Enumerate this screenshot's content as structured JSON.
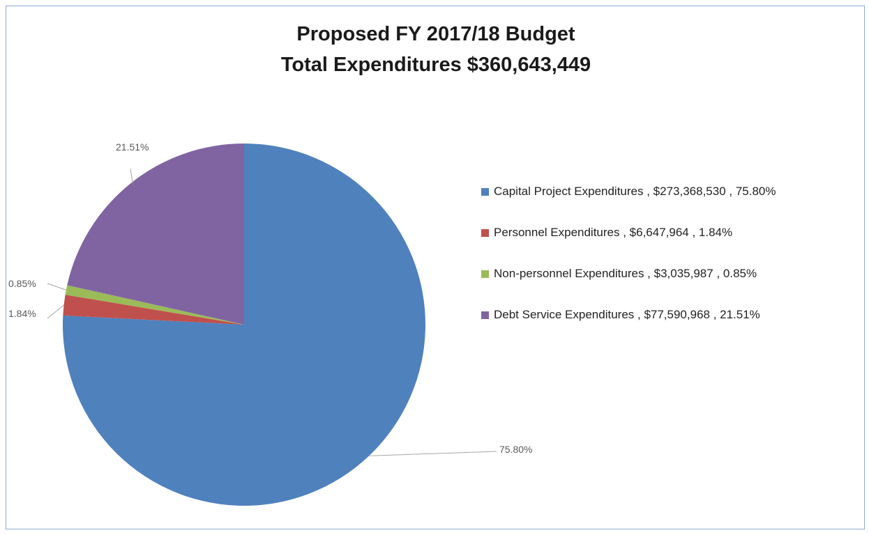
{
  "chart_data": {
    "type": "pie",
    "title": "Proposed FY 2017/18 Budget",
    "subtitle": "Total Expenditures $360,643,449",
    "slices": [
      {
        "name": "Capital Project Expenditures",
        "amount": "$273,368,530",
        "value": 75.8,
        "label": "75.80%",
        "color": "#4f81bd"
      },
      {
        "name": "Personnel Expenditures",
        "amount": "$6,647,964",
        "value": 1.84,
        "label": "1.84%",
        "color": "#c0504d"
      },
      {
        "name": "Non-personnel Expenditures",
        "amount": "$3,035,987",
        "value": 0.85,
        "label": "0.85%",
        "color": "#9bbb59"
      },
      {
        "name": "Debt Service Expenditures",
        "amount": "$77,590,968",
        "value": 21.51,
        "label": "21.51%",
        "color": "#8064a2"
      }
    ],
    "legend": {
      "position": "right",
      "entries": [
        "Capital Project Expenditures ,  $273,368,530  , 75.80%",
        "Personnel Expenditures ,  $6,647,964  , 1.84%",
        "Non-personnel Expenditures ,  $3,035,987  , 0.85%",
        "Debt Service Expenditures ,  $77,590,968  , 21.51%"
      ]
    }
  }
}
